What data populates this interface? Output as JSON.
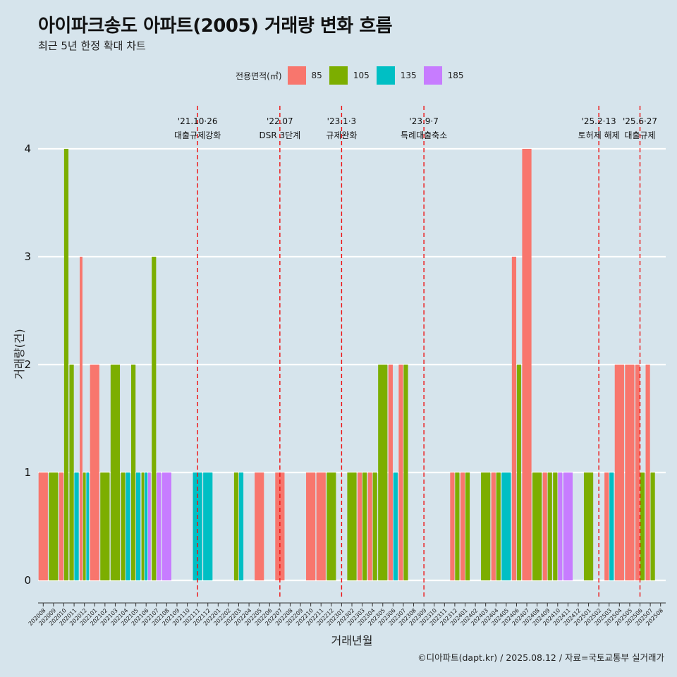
{
  "header": {
    "title": "아이파크송도 아파트(2005) 거래량 변화 흐름",
    "subtitle": "최근 5년 한정 확대 차트"
  },
  "legend": {
    "title": "전용면적(㎡)",
    "items": [
      {
        "label": "85",
        "color": "#f8766d"
      },
      {
        "label": "105",
        "color": "#7cae00"
      },
      {
        "label": "135",
        "color": "#00bfc4"
      },
      {
        "label": "185",
        "color": "#c77cff"
      }
    ]
  },
  "caption": "©디아파트(dapt.kr) / 2025.08.12 / 자료=국토교통부 실거래가",
  "chart_data": {
    "type": "bar",
    "xlabel": "거래년월",
    "ylabel": "거래량(건)",
    "ylim": [
      0,
      4
    ],
    "yticks": [
      0,
      1,
      2,
      3,
      4
    ],
    "grid": true,
    "categories": [
      "202008",
      "202009",
      "202010",
      "202011",
      "202012",
      "202101",
      "202102",
      "202103",
      "202104",
      "202105",
      "202106",
      "202107",
      "202108",
      "202109",
      "202110",
      "202111",
      "202112",
      "202201",
      "202202",
      "202203",
      "202204",
      "202205",
      "202206",
      "202207",
      "202208",
      "202209",
      "202210",
      "202211",
      "202212",
      "202301",
      "202302",
      "202303",
      "202304",
      "202305",
      "202306",
      "202307",
      "202308",
      "202309",
      "202310",
      "202311",
      "202312",
      "202401",
      "202402",
      "202403",
      "202404",
      "202405",
      "202406",
      "202407",
      "202408",
      "202409",
      "202410",
      "202411",
      "202412",
      "202501",
      "202502",
      "202503",
      "202504",
      "202505",
      "202506",
      "202507",
      "202508"
    ],
    "series": [
      {
        "name": "85",
        "color": "#f8766d",
        "values": [
          1,
          0,
          1,
          0,
          3,
          2,
          0,
          0,
          0,
          0,
          0,
          0,
          0,
          0,
          0,
          0,
          0,
          0,
          0,
          0,
          0,
          1,
          0,
          1,
          0,
          0,
          1,
          1,
          0,
          0,
          0,
          1,
          1,
          0,
          2,
          2,
          0,
          0,
          0,
          0,
          1,
          1,
          0,
          0,
          1,
          0,
          3,
          4,
          0,
          1,
          0,
          0,
          0,
          0,
          0,
          1,
          2,
          2,
          2,
          2,
          0
        ]
      },
      {
        "name": "105",
        "color": "#7cae00",
        "values": [
          0,
          1,
          4,
          2,
          1,
          0,
          1,
          2,
          1,
          2,
          1,
          3,
          0,
          0,
          0,
          0,
          0,
          0,
          0,
          1,
          0,
          0,
          0,
          0,
          0,
          0,
          0,
          0,
          1,
          0,
          1,
          1,
          1,
          2,
          0,
          2,
          0,
          0,
          0,
          0,
          1,
          1,
          0,
          1,
          1,
          0,
          2,
          0,
          1,
          1,
          1,
          0,
          0,
          1,
          0,
          0,
          0,
          0,
          1,
          1,
          0
        ]
      },
      {
        "name": "135",
        "color": "#00bfc4",
        "values": [
          0,
          0,
          0,
          1,
          1,
          0,
          0,
          0,
          1,
          1,
          1,
          0,
          0,
          0,
          0,
          1,
          1,
          0,
          0,
          1,
          0,
          0,
          0,
          0,
          0,
          0,
          0,
          0,
          0,
          0,
          0,
          0,
          0,
          0,
          1,
          0,
          0,
          0,
          0,
          0,
          0,
          0,
          0,
          0,
          0,
          1,
          0,
          0,
          0,
          0,
          0,
          0,
          0,
          0,
          0,
          1,
          0,
          0,
          0,
          0,
          0
        ]
      },
      {
        "name": "185",
        "color": "#c77cff",
        "values": [
          0,
          0,
          0,
          0,
          0,
          0,
          0,
          0,
          0,
          0,
          1,
          1,
          1,
          0,
          0,
          0,
          0,
          0,
          0,
          0,
          0,
          0,
          0,
          0,
          0,
          0,
          0,
          0,
          0,
          0,
          0,
          0,
          0,
          0,
          0,
          0,
          0,
          0,
          0,
          0,
          0,
          0,
          0,
          0,
          0,
          0,
          0,
          0,
          0,
          0,
          1,
          1,
          0,
          0,
          0,
          0,
          0,
          0,
          0,
          0,
          0
        ]
      }
    ],
    "events": [
      {
        "month": "202111",
        "date": "'21.10·26",
        "label": "대출규제강화"
      },
      {
        "month": "202207",
        "date": "'22.07",
        "label": "DSR 3단계"
      },
      {
        "month": "202301",
        "date": "'23.1·3",
        "label": "규제완화"
      },
      {
        "month": "202309",
        "date": "'23.9·7",
        "label": "특례대출축소"
      },
      {
        "month": "202502",
        "date": "'25.2·13",
        "label": "토허제 해제"
      },
      {
        "month": "202506",
        "date": "'25.6·27",
        "label": "대출규제"
      }
    ]
  }
}
